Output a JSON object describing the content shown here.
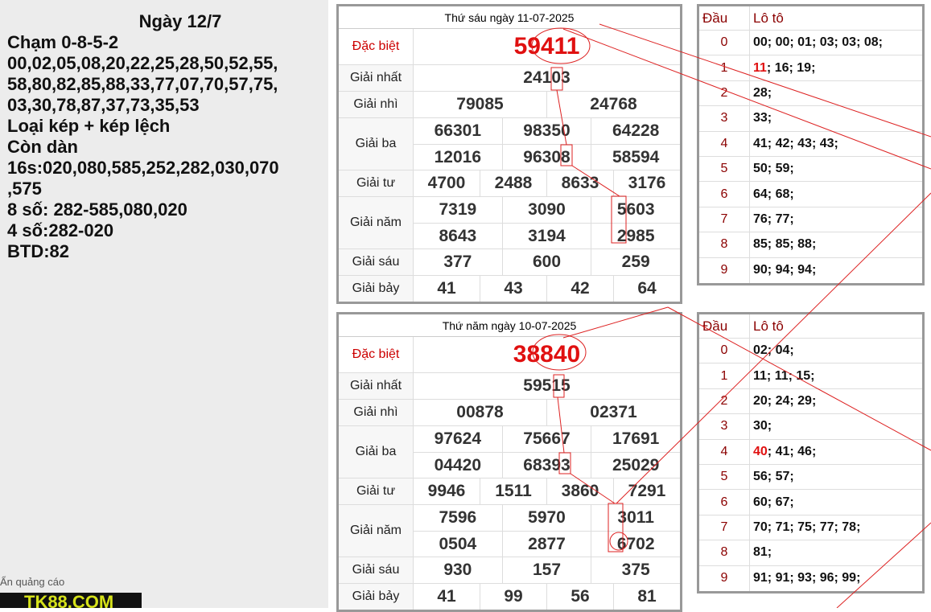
{
  "note": {
    "title": "Ngày 12/7",
    "lines": [
      "Chạm 0-8-5-2",
      "00,02,05,08,20,22,25,28,50,52,55,",
      "58,80,82,85,88,33,77,07,70,57,75,",
      "03,30,78,87,37,73,35,53",
      "Loại kép + kép lệch",
      "Còn dàn",
      "16s:020,080,585,252,282,030,070",
      ",575",
      "8 số: 282-585,080,020",
      "4 số:282-020",
      "BTD:82"
    ]
  },
  "ad": {
    "hide": "Ẩn quảng cáo",
    "logo": "TK88.COM"
  },
  "results": [
    {
      "title": "Thứ sáu ngày 11-07-2025",
      "rows": [
        {
          "label": "Đặc biệt",
          "numbers": [
            [
              "59411"
            ]
          ]
        },
        {
          "label": "Giải nhất",
          "numbers": [
            [
              "24103"
            ]
          ]
        },
        {
          "label": "Giải nhì",
          "numbers": [
            [
              "79085",
              "24768"
            ]
          ]
        },
        {
          "label": "Giải ba",
          "numbers": [
            [
              "66301",
              "98350",
              "64228"
            ],
            [
              "12016",
              "96308",
              "58594"
            ]
          ]
        },
        {
          "label": "Giải tư",
          "numbers": [
            [
              "4700",
              "2488",
              "8633",
              "3176"
            ]
          ]
        },
        {
          "label": "Giải năm",
          "numbers": [
            [
              "7319",
              "3090",
              "5603"
            ],
            [
              "8643",
              "3194",
              "2985"
            ]
          ]
        },
        {
          "label": "Giải sáu",
          "numbers": [
            [
              "377",
              "600",
              "259"
            ]
          ]
        },
        {
          "label": "Giải bảy",
          "numbers": [
            [
              "41",
              "43",
              "42",
              "64"
            ]
          ]
        }
      ]
    },
    {
      "title": "Thứ năm ngày 10-07-2025",
      "rows": [
        {
          "label": "Đặc biệt",
          "numbers": [
            [
              "38840"
            ]
          ]
        },
        {
          "label": "Giải nhất",
          "numbers": [
            [
              "59515"
            ]
          ]
        },
        {
          "label": "Giải nhì",
          "numbers": [
            [
              "00878",
              "02371"
            ]
          ]
        },
        {
          "label": "Giải ba",
          "numbers": [
            [
              "97624",
              "75667",
              "17691"
            ],
            [
              "04420",
              "68393",
              "25029"
            ]
          ]
        },
        {
          "label": "Giải tư",
          "numbers": [
            [
              "9946",
              "1511",
              "3860",
              "7291"
            ]
          ]
        },
        {
          "label": "Giải năm",
          "numbers": [
            [
              "7596",
              "5970",
              "3011"
            ],
            [
              "0504",
              "2877",
              "6702"
            ]
          ]
        },
        {
          "label": "Giải sáu",
          "numbers": [
            [
              "930",
              "157",
              "375"
            ]
          ]
        },
        {
          "label": "Giải bảy",
          "numbers": [
            [
              "41",
              "99",
              "56",
              "81"
            ]
          ]
        }
      ]
    }
  ],
  "loto": [
    {
      "head_label": "Đầu",
      "values_label": "Lô tô",
      "rows": [
        {
          "head": "0",
          "rest": "00; 00; 01; 03; 03; 08;"
        },
        {
          "head": "1",
          "hot": "11",
          "rest": "; 16; 19;"
        },
        {
          "head": "2",
          "rest": "28;"
        },
        {
          "head": "3",
          "rest": "33;"
        },
        {
          "head": "4",
          "rest": "41; 42; 43; 43;"
        },
        {
          "head": "5",
          "rest": "50; 59;"
        },
        {
          "head": "6",
          "rest": "64; 68;"
        },
        {
          "head": "7",
          "rest": "76; 77;"
        },
        {
          "head": "8",
          "rest": "85; 85; 88;"
        },
        {
          "head": "9",
          "rest": "90; 94; 94;"
        }
      ]
    },
    {
      "head_label": "Đầu",
      "values_label": "Lô tô",
      "rows": [
        {
          "head": "0",
          "rest": "02; 04;"
        },
        {
          "head": "1",
          "rest": "11; 11; 15;"
        },
        {
          "head": "2",
          "rest": "20; 24; 29;"
        },
        {
          "head": "3",
          "rest": "30;"
        },
        {
          "head": "4",
          "hot": "40",
          "rest": "; 41; 46;"
        },
        {
          "head": "5",
          "rest": "56; 57;"
        },
        {
          "head": "6",
          "rest": "60; 67;"
        },
        {
          "head": "7",
          "rest": "70; 71; 75; 77; 78;"
        },
        {
          "head": "8",
          "rest": "81;"
        },
        {
          "head": "9",
          "rest": "91; 91; 93; 96; 99;"
        }
      ]
    }
  ]
}
